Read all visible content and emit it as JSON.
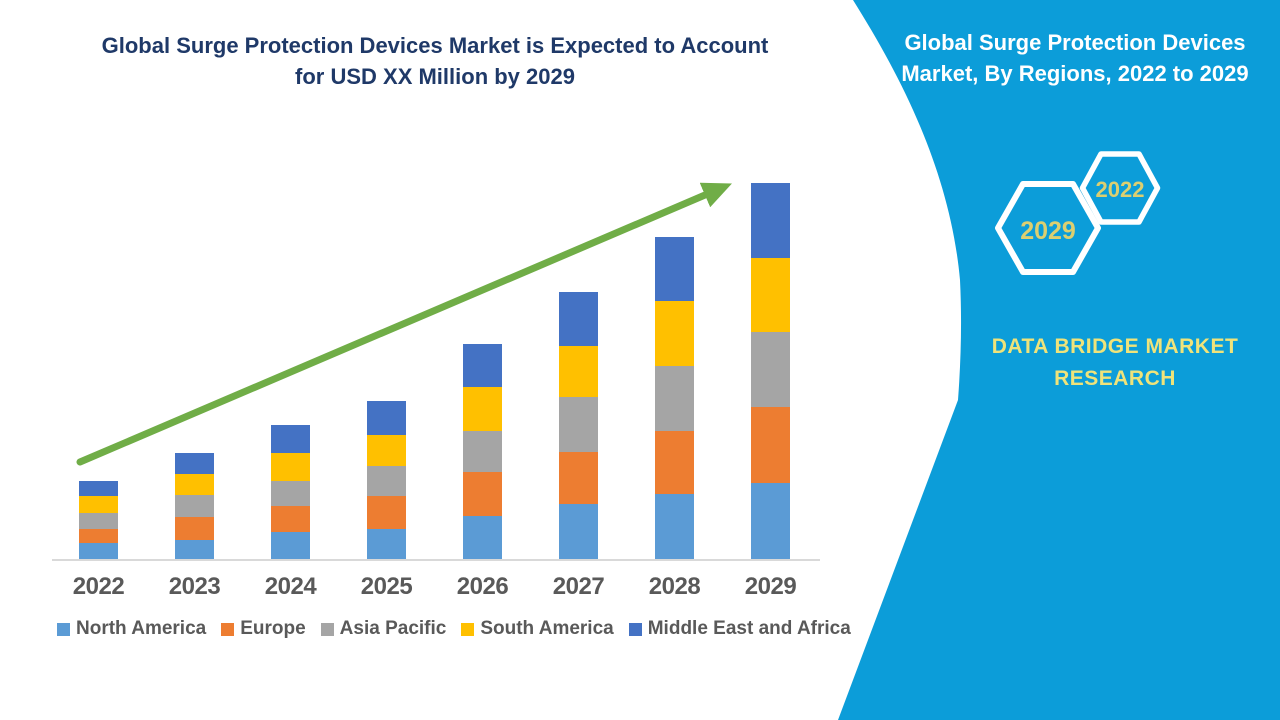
{
  "colors": {
    "sidebar_cyan": "#0C9DD9",
    "title_navy": "#1F3968",
    "axis_text_gray": "#595959",
    "axis_line_gray": "#D9D9D9",
    "arrow_green": "#70AD47",
    "hexagon_outline": "#FFFFFF",
    "hexagon_year_gold": "#DCCF70",
    "brand_yellow": "#EFE37A",
    "sidebar_text_white": "#FFFFFF"
  },
  "main_title": {
    "lines": [
      "Global Surge Protection Devices Market is Expected to Account",
      "for USD XX Million by 2029"
    ]
  },
  "sidebar": {
    "title_lines": [
      "Global Surge Protection Devices",
      "Market, By Regions, 2022 to 2029"
    ],
    "hexagons": [
      {
        "label": "2029"
      },
      {
        "label": "2022"
      }
    ],
    "brand_lines": [
      "DATA BRIDGE MARKET",
      "RESEARCH"
    ]
  },
  "chart_data": {
    "type": "bar",
    "stacked": true,
    "title": "Global Surge Protection Devices Market is Expected to Account for USD XX Million by 2029",
    "xlabel": "",
    "ylabel": "",
    "unit_note": "USD XX Million (y-axis unlabeled; segment values are relative estimates read from bar heights)",
    "grid": false,
    "y_axis_tick_labels_visible": false,
    "legend_position": "bottom",
    "categories": [
      "2022",
      "2023",
      "2024",
      "2025",
      "2026",
      "2027",
      "2028",
      "2029"
    ],
    "series": [
      {
        "name": "North America",
        "color": "#5B9BD5",
        "values": [
          17,
          20,
          28,
          31,
          44,
          56,
          66,
          77
        ]
      },
      {
        "name": "Europe",
        "color": "#ED7D31",
        "values": [
          14,
          23,
          26,
          33,
          44,
          52,
          63,
          76
        ]
      },
      {
        "name": "Asia Pacific",
        "color": "#A5A5A5",
        "values": [
          16,
          22,
          25,
          30,
          41,
          55,
          65,
          75
        ]
      },
      {
        "name": "South America",
        "color": "#FFC000",
        "values": [
          17,
          21,
          28,
          31,
          44,
          51,
          65,
          74
        ]
      },
      {
        "name": "Middle East and Africa",
        "color": "#4472C4",
        "values": [
          15,
          21,
          28,
          34,
          43,
          54,
          64,
          75
        ]
      }
    ],
    "totals": [
      79,
      107,
      135,
      159,
      216,
      268,
      323,
      377
    ],
    "annotations": [
      {
        "type": "trend-arrow",
        "direction": "up-right",
        "color": "#70AD47"
      }
    ]
  }
}
